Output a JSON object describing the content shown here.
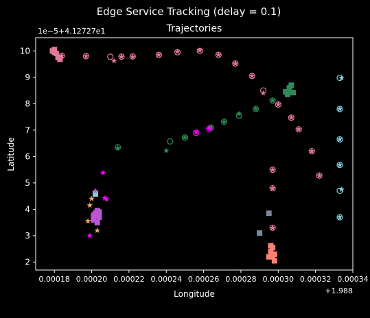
{
  "figure": {
    "suptitle": "Edge Service Tracking (delay = 0.1)",
    "title": "Trajectories",
    "xlabel": "Longitude",
    "ylabel": "Latitude",
    "x_offset_label": "+1.988",
    "y_offset_label": "1e−5+4.12727e1"
  },
  "chart_data": {
    "type": "scatter",
    "title": "Trajectories",
    "xlabel": "Longitude",
    "ylabel": "Latitude",
    "xlim": [
      0.00017,
      0.00034
    ],
    "ylim": [
      1.7,
      10.5
    ],
    "xticks": [
      0.00018,
      0.0002,
      0.00022,
      0.00024,
      0.00026,
      0.00028,
      0.0003,
      0.00032,
      0.00034
    ],
    "xtick_labels": [
      "0.00018",
      "0.00020",
      "0.00022",
      "0.00024",
      "0.00026",
      "0.00028",
      "0.00030",
      "0.00032",
      "0.00034"
    ],
    "yticks": [
      2,
      3,
      4,
      5,
      6,
      7,
      8,
      9,
      10
    ],
    "ytick_labels": [
      "2",
      "3",
      "4",
      "5",
      "6",
      "7",
      "8",
      "9",
      "10"
    ],
    "grid": false,
    "series": [
      {
        "color": "#e07a98",
        "circles": [
          [
            0.000184,
            9.82
          ],
          [
            0.000197,
            9.8
          ],
          [
            0.00021,
            9.78
          ],
          [
            0.000216,
            9.78
          ],
          [
            0.000222,
            9.79
          ],
          [
            0.000236,
            9.85
          ],
          [
            0.000246,
            9.95
          ],
          [
            0.000258,
            10.0
          ],
          [
            0.000268,
            9.85
          ],
          [
            0.000277,
            9.52
          ],
          [
            0.000286,
            9.05
          ],
          [
            0.000292,
            8.5
          ],
          [
            0.0003,
            7.97
          ],
          [
            0.000307,
            7.47
          ],
          [
            0.000311,
            7.03
          ],
          [
            0.000318,
            6.2
          ],
          [
            0.000322,
            5.28
          ],
          [
            0.000297,
            5.5
          ],
          [
            0.000297,
            4.8
          ],
          [
            0.000297,
            3.3
          ]
        ],
        "stars": [
          [
            0.000184,
            9.82
          ],
          [
            0.000197,
            9.8
          ],
          [
            0.000212,
            9.62
          ],
          [
            0.000216,
            9.78
          ],
          [
            0.000222,
            9.78
          ],
          [
            0.000236,
            9.85
          ],
          [
            0.000246,
            9.97
          ],
          [
            0.000258,
            10.02
          ],
          [
            0.000268,
            9.85
          ],
          [
            0.000277,
            9.52
          ],
          [
            0.000286,
            9.05
          ],
          [
            0.000292,
            8.4
          ],
          [
            0.0003,
            7.97
          ],
          [
            0.000307,
            7.47
          ],
          [
            0.000311,
            7.03
          ],
          [
            0.000318,
            6.2
          ],
          [
            0.000322,
            5.28
          ],
          [
            0.000297,
            5.5
          ],
          [
            0.000297,
            4.8
          ],
          [
            0.000297,
            3.3
          ]
        ],
        "squares": [
          [
            0.00018,
            10.05
          ],
          [
            0.000181,
            9.9
          ],
          [
            0.000182,
            9.75
          ],
          [
            0.000183,
            9.68
          ],
          [
            0.00018,
            9.95
          ],
          [
            0.000179,
            10.0
          ]
        ]
      },
      {
        "color": "#2e8b57",
        "circles": [
          [
            0.000214,
            6.35
          ],
          [
            0.000242,
            6.57
          ],
          [
            0.00025,
            6.72
          ],
          [
            0.000264,
            7.1
          ],
          [
            0.000271,
            7.32
          ],
          [
            0.000279,
            7.55
          ],
          [
            0.000288,
            7.8
          ],
          [
            0.000297,
            8.12
          ]
        ],
        "stars": [
          [
            0.000214,
            6.32
          ],
          [
            0.00024,
            6.22
          ],
          [
            0.00025,
            6.72
          ],
          [
            0.000264,
            7.1
          ],
          [
            0.000271,
            7.32
          ],
          [
            0.000279,
            7.62
          ],
          [
            0.000288,
            7.8
          ],
          [
            0.000297,
            8.12
          ]
        ],
        "squares": [
          [
            0.000305,
            8.35
          ],
          [
            0.000306,
            8.55
          ],
          [
            0.000307,
            8.7
          ],
          [
            0.000304,
            8.45
          ],
          [
            0.000308,
            8.42
          ],
          [
            0.000306,
            8.6
          ]
        ]
      },
      {
        "color": "#ff00ff",
        "circles": [
          [
            0.000256,
            6.9
          ],
          [
            0.000263,
            7.05
          ]
        ],
        "stars": [
          [
            0.000256,
            6.92
          ],
          [
            0.000263,
            7.05
          ],
          [
            0.000206,
            5.38
          ],
          [
            0.000207,
            4.42
          ],
          [
            0.000208,
            4.38
          ],
          [
            0.000199,
            3.0
          ],
          [
            0.000201,
            3.85
          ]
        ],
        "squares": []
      },
      {
        "color": "#87cedc",
        "circles": [
          [
            0.000333,
            8.98
          ],
          [
            0.000333,
            7.8
          ],
          [
            0.000333,
            6.65
          ],
          [
            0.000333,
            5.68
          ],
          [
            0.000333,
            4.7
          ],
          [
            0.000333,
            3.7
          ]
        ],
        "stars": [
          [
            0.000334,
            8.98
          ],
          [
            0.000333,
            7.8
          ],
          [
            0.000333,
            6.65
          ],
          [
            0.000333,
            5.68
          ],
          [
            0.000334,
            4.75
          ],
          [
            0.000333,
            3.7
          ]
        ],
        "squares": [
          [
            0.000202,
            4.58
          ]
        ]
      },
      {
        "color": "#f4a460",
        "circles": [],
        "stars": [
          [
            0.0002,
            4.4
          ],
          [
            0.000199,
            4.15
          ],
          [
            0.000203,
            3.2
          ],
          [
            0.000198,
            3.55
          ]
        ],
        "squares": []
      },
      {
        "color": "#ba55d3",
        "circles": [],
        "stars": [
          [
            0.000202,
            4.7
          ]
        ],
        "squares": [
          [
            0.000201,
            3.6
          ],
          [
            0.000202,
            3.8
          ],
          [
            0.000203,
            3.95
          ],
          [
            0.000204,
            3.7
          ],
          [
            0.000203,
            3.5
          ],
          [
            0.000202,
            3.85
          ],
          [
            0.000204,
            3.9
          ],
          [
            0.000201,
            3.75
          ]
        ]
      },
      {
        "color": "#778899",
        "circles": [],
        "stars": [],
        "squares": [
          [
            0.000295,
            3.85
          ],
          [
            0.00029,
            3.1
          ]
        ]
      },
      {
        "color": "#fa8072",
        "circles": [],
        "stars": [],
        "squares": [
          [
            0.000296,
            2.4
          ],
          [
            0.000297,
            2.55
          ],
          [
            0.000298,
            2.3
          ],
          [
            0.000295,
            2.2
          ],
          [
            0.000297,
            2.2
          ],
          [
            0.000298,
            2.05
          ],
          [
            0.000296,
            2.62
          ]
        ]
      }
    ]
  }
}
